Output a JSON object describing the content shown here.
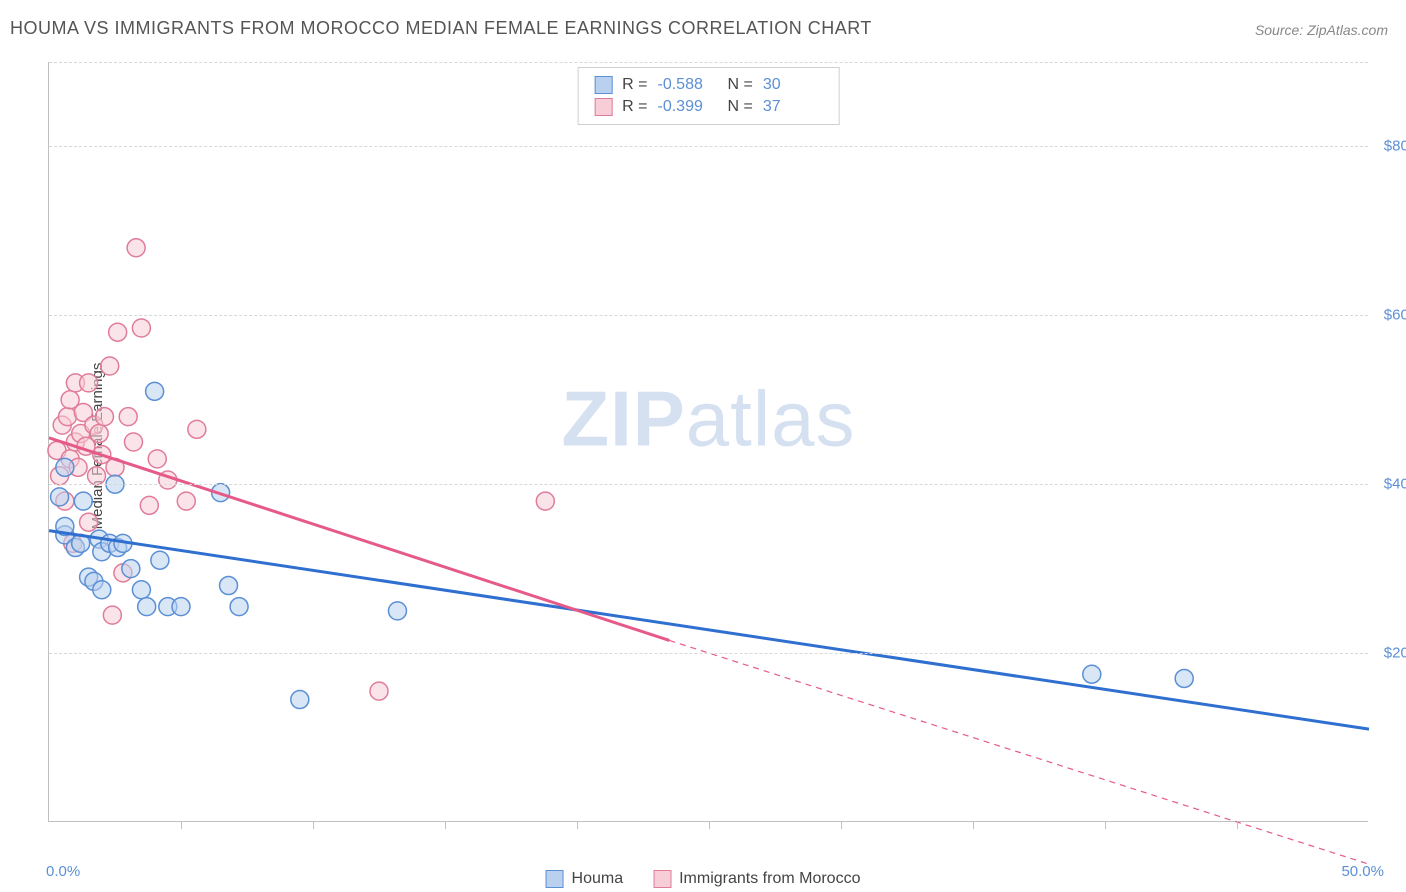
{
  "title": "HOUMA VS IMMIGRANTS FROM MOROCCO MEDIAN FEMALE EARNINGS CORRELATION CHART",
  "source": "Source: ZipAtlas.com",
  "ylabel": "Median Female Earnings",
  "watermark_zip": "ZIP",
  "watermark_atlas": "atlas",
  "chart": {
    "type": "scatter",
    "xlim": [
      0,
      50
    ],
    "ylim": [
      0,
      90000
    ],
    "x_min_label": "0.0%",
    "x_max_label": "50.0%",
    "y_gridlines": [
      20000,
      40000,
      60000,
      80000
    ],
    "y_tick_labels": [
      "$20,000",
      "$40,000",
      "$60,000",
      "$80,000"
    ],
    "x_ticks": [
      5,
      10,
      15,
      20,
      25,
      30,
      35,
      40,
      45
    ],
    "background_color": "#ffffff",
    "grid_color": "#d8d8d8",
    "axis_color": "#c0c0c0",
    "axis_label_color": "#5b8fd6",
    "title_color": "#555555"
  },
  "series": {
    "houma": {
      "label": "Houma",
      "fill": "#b9d1ee",
      "stroke": "#5b8fd6",
      "fill_opacity": 0.55,
      "marker_radius": 9,
      "R": "-0.588",
      "N": "30",
      "trend": {
        "x1": 0,
        "y1": 34500,
        "x2": 50,
        "y2": 11000,
        "stroke": "#2f6fd0",
        "width": 3,
        "dash": "none"
      },
      "points": [
        [
          0.4,
          38500
        ],
        [
          0.6,
          34000
        ],
        [
          0.6,
          42000
        ],
        [
          0.6,
          35000
        ],
        [
          1.0,
          32500
        ],
        [
          1.2,
          33000
        ],
        [
          1.3,
          38000
        ],
        [
          1.5,
          29000
        ],
        [
          1.7,
          28500
        ],
        [
          1.9,
          33500
        ],
        [
          2.0,
          32000
        ],
        [
          2.0,
          27500
        ],
        [
          2.3,
          33000
        ],
        [
          2.5,
          40000
        ],
        [
          2.6,
          32500
        ],
        [
          2.8,
          33000
        ],
        [
          3.1,
          30000
        ],
        [
          3.5,
          27500
        ],
        [
          3.7,
          25500
        ],
        [
          4.0,
          51000
        ],
        [
          4.2,
          31000
        ],
        [
          4.5,
          25500
        ],
        [
          5.0,
          25500
        ],
        [
          6.5,
          39000
        ],
        [
          6.8,
          28000
        ],
        [
          7.2,
          25500
        ],
        [
          9.5,
          14500
        ],
        [
          13.2,
          25000
        ],
        [
          39.5,
          17500
        ],
        [
          43.0,
          17000
        ]
      ]
    },
    "morocco": {
      "label": "Immigrants from Morocco",
      "fill": "#f7cdd7",
      "stroke": "#e07c9a",
      "fill_opacity": 0.55,
      "marker_radius": 9,
      "R": "-0.399",
      "N": "37",
      "trend_solid": {
        "x1": 0,
        "y1": 45500,
        "x2": 23.5,
        "y2": 21500,
        "stroke": "#e65a8a",
        "width": 3
      },
      "trend_dashed": {
        "x1": 23.5,
        "y1": 21500,
        "x2": 50,
        "y2": -5000,
        "stroke": "#e65a8a",
        "width": 1.2,
        "dash": "6 5"
      },
      "points": [
        [
          0.3,
          44000
        ],
        [
          0.4,
          41000
        ],
        [
          0.5,
          47000
        ],
        [
          0.6,
          38000
        ],
        [
          0.7,
          48000
        ],
        [
          0.8,
          43000
        ],
        [
          0.8,
          50000
        ],
        [
          0.9,
          33000
        ],
        [
          1.0,
          45000
        ],
        [
          1.0,
          52000
        ],
        [
          1.1,
          42000
        ],
        [
          1.2,
          46000
        ],
        [
          1.3,
          48500
        ],
        [
          1.4,
          44500
        ],
        [
          1.5,
          52000
        ],
        [
          1.5,
          35500
        ],
        [
          1.7,
          47000
        ],
        [
          1.8,
          41000
        ],
        [
          1.9,
          46000
        ],
        [
          2.0,
          43500
        ],
        [
          2.1,
          48000
        ],
        [
          2.3,
          54000
        ],
        [
          2.5,
          42000
        ],
        [
          2.6,
          58000
        ],
        [
          2.8,
          29500
        ],
        [
          3.0,
          48000
        ],
        [
          3.2,
          45000
        ],
        [
          3.3,
          68000
        ],
        [
          3.5,
          58500
        ],
        [
          3.8,
          37500
        ],
        [
          4.1,
          43000
        ],
        [
          4.5,
          40500
        ],
        [
          5.2,
          38000
        ],
        [
          5.6,
          46500
        ],
        [
          2.4,
          24500
        ],
        [
          12.5,
          15500
        ],
        [
          18.8,
          38000
        ]
      ]
    }
  }
}
